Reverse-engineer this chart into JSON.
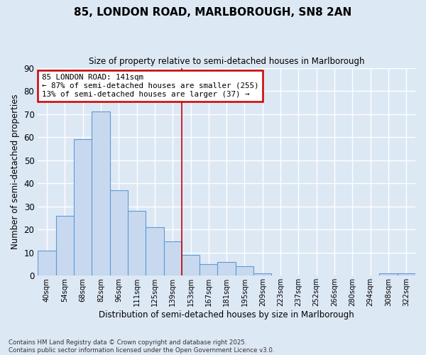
{
  "title": "85, LONDON ROAD, MARLBOROUGH, SN8 2AN",
  "subtitle": "Size of property relative to semi-detached houses in Marlborough",
  "xlabel": "Distribution of semi-detached houses by size in Marlborough",
  "ylabel": "Number of semi-detached properties",
  "bar_labels": [
    "40sqm",
    "54sqm",
    "68sqm",
    "82sqm",
    "96sqm",
    "111sqm",
    "125sqm",
    "139sqm",
    "153sqm",
    "167sqm",
    "181sqm",
    "195sqm",
    "209sqm",
    "223sqm",
    "237sqm",
    "252sqm",
    "266sqm",
    "280sqm",
    "294sqm",
    "308sqm",
    "322sqm"
  ],
  "bar_values": [
    11,
    26,
    59,
    71,
    37,
    28,
    21,
    15,
    9,
    5,
    6,
    4,
    1,
    0,
    0,
    0,
    0,
    0,
    0,
    1,
    1
  ],
  "bar_color": "#c8d9ef",
  "bar_edge_color": "#5b9bd5",
  "vline_x": 7.5,
  "vline_color": "#cc0000",
  "annotation_title": "85 LONDON ROAD: 141sqm",
  "annotation_line1": "← 87% of semi-detached houses are smaller (255)",
  "annotation_line2": "13% of semi-detached houses are larger (37) →",
  "annotation_box_color": "#cc0000",
  "ylim": [
    0,
    90
  ],
  "yticks": [
    0,
    10,
    20,
    30,
    40,
    50,
    60,
    70,
    80,
    90
  ],
  "background_color": "#dde8f5",
  "grid_color": "#ffffff",
  "footer_line1": "Contains HM Land Registry data © Crown copyright and database right 2025.",
  "footer_line2": "Contains public sector information licensed under the Open Government Licence v3.0."
}
